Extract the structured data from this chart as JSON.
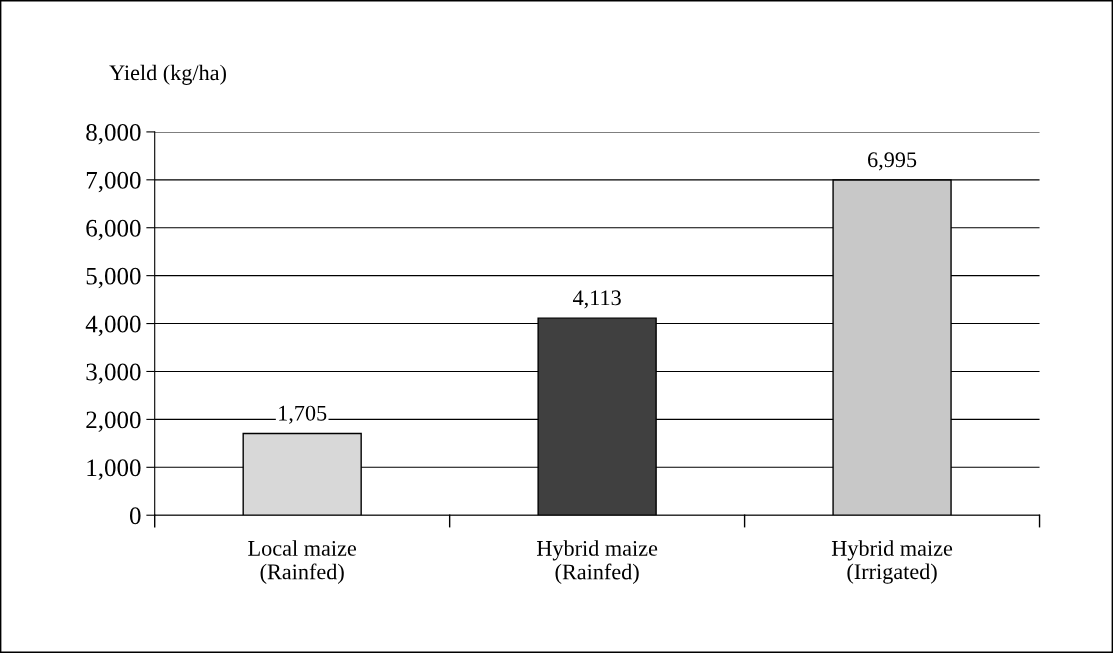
{
  "chart_data": {
    "type": "bar",
    "ylabel": "Yield (kg/ha)",
    "categories": [
      "Local maize\n(Rainfed)",
      "Hybrid maize\n(Rainfed)",
      "Hybrid maize\n(Irrigated)"
    ],
    "values": [
      1705,
      4113,
      6995
    ],
    "colors": [
      "#d8d8d8",
      "#404040",
      "#c8c8c8"
    ],
    "value_labels": [
      "1,705",
      "4,113",
      "6,995"
    ],
    "ylim": [
      0,
      8000
    ],
    "yticks": [
      {
        "value": 0,
        "label": "0"
      },
      {
        "value": 1000,
        "label": "1,000"
      },
      {
        "value": 2000,
        "label": "2,000"
      },
      {
        "value": 3000,
        "label": "3,000"
      },
      {
        "value": 4000,
        "label": "4,000"
      },
      {
        "value": 5000,
        "label": "5,000"
      },
      {
        "value": 6000,
        "label": "6,000"
      },
      {
        "value": 7000,
        "label": "7,000"
      },
      {
        "value": 8000,
        "label": "8,000"
      }
    ],
    "grid": "y",
    "legend": false
  }
}
